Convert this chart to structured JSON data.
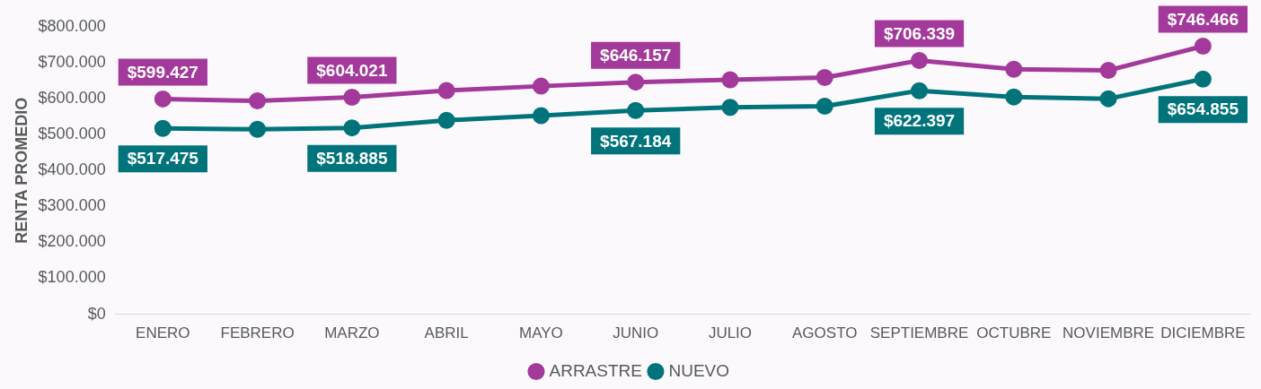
{
  "chart_data": {
    "type": "line",
    "ylabel": "RENTA PROMEDIO",
    "categories": [
      "ENERO",
      "FEBRERO",
      "MARZO",
      "ABRIL",
      "MAYO",
      "JUNIO",
      "JULIO",
      "AGOSTO",
      "SEPTIEMBRE",
      "OCTUBRE",
      "NOVIEMBRE",
      "DICIEMBRE"
    ],
    "series": [
      {
        "name": "ARRASTRE",
        "color": "#a3399b",
        "values": [
          599427,
          594000,
          604021,
          623000,
          635000,
          646157,
          653000,
          659000,
          706339,
          682000,
          679000,
          746466
        ],
        "value_labels": [
          "$599.427",
          null,
          "$604.021",
          null,
          null,
          "$646.157",
          null,
          null,
          "$706.339",
          null,
          null,
          "$746.466"
        ]
      },
      {
        "name": "NUEVO",
        "color": "#00737b",
        "values": [
          517475,
          515000,
          518885,
          540000,
          553000,
          567184,
          576000,
          579000,
          622397,
          605000,
          600000,
          654855
        ],
        "value_labels": [
          "$517.475",
          null,
          "$518.885",
          null,
          null,
          "$567.184",
          null,
          null,
          "$622.397",
          null,
          null,
          "$654.855"
        ]
      }
    ],
    "ylim": [
      0,
      800000
    ],
    "yticks": [
      {
        "value": 0,
        "label": "$0"
      },
      {
        "value": 100000,
        "label": "$100.000"
      },
      {
        "value": 200000,
        "label": "$200.000"
      },
      {
        "value": 300000,
        "label": "$300.000"
      },
      {
        "value": 400000,
        "label": "$400.000"
      },
      {
        "value": 500000,
        "label": "$500.000"
      },
      {
        "value": 600000,
        "label": "$600.000"
      },
      {
        "value": 700000,
        "label": "$700.000"
      },
      {
        "value": 800000,
        "label": "$800.000"
      }
    ],
    "grid": false,
    "legend": "bottom",
    "marker": "circle",
    "line_style": "solid"
  }
}
